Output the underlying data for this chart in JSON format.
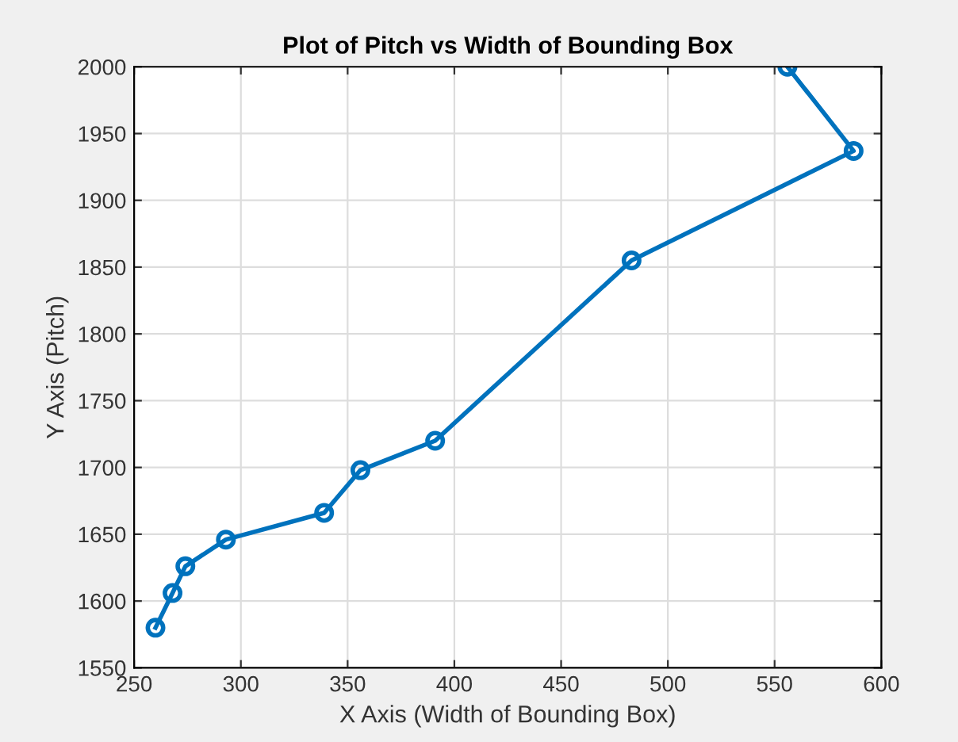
{
  "chart_data": {
    "type": "line",
    "title": "Plot of Pitch vs Width of Bounding Box",
    "xlabel": "X Axis (Width of Bounding Box)",
    "ylabel": "Y Axis (Pitch)",
    "series": [
      {
        "color": "#0072bd",
        "x": [
          260,
          268,
          274,
          293,
          339,
          356,
          391,
          483,
          587,
          556
        ],
        "values": [
          1580,
          1606,
          1626,
          1646,
          1666,
          1698,
          1720,
          1855,
          1937,
          2000
        ]
      }
    ],
    "xlim": [
      250,
      600
    ],
    "xticks": [
      250,
      300,
      350,
      400,
      450,
      500,
      550,
      600
    ],
    "ylim": [
      1550,
      2000
    ],
    "yticks": [
      1550,
      1600,
      1650,
      1700,
      1750,
      1800,
      1850,
      1900,
      1950,
      2000
    ],
    "grid": true,
    "marker": "circle",
    "line_style": "solid"
  }
}
